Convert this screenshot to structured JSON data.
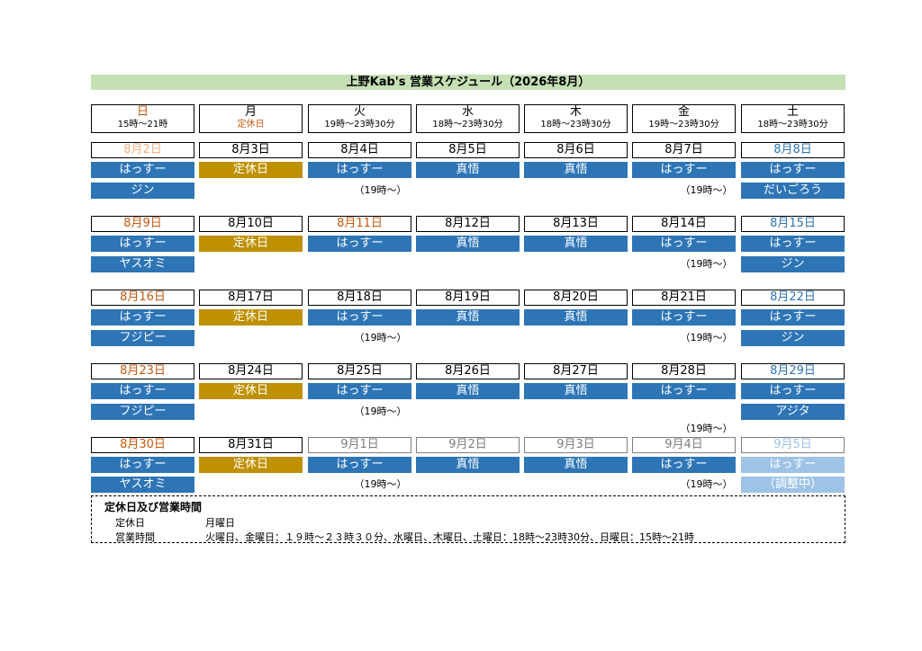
{
  "title": "上野Kab's 営業スケジュール（2026年8月）",
  "headers": [
    {
      "day": "日",
      "hours": "15時〜21時"
    },
    {
      "day": "月",
      "hours": "定休日"
    },
    {
      "day": "火",
      "hours": "19時〜23時30分"
    },
    {
      "day": "水",
      "hours": "18時〜23時30分"
    },
    {
      "day": "木",
      "hours": "18時〜23時30分"
    },
    {
      "day": "金",
      "hours": "19時〜23時30分"
    },
    {
      "day": "土",
      "hours": "18時〜23時30分"
    }
  ],
  "weeks": [
    {
      "dates": [
        "8月2日",
        "8月3日",
        "8月4日",
        "8月5日",
        "8月6日",
        "8月7日",
        "8月8日"
      ],
      "staff": [
        "はっすー",
        "定休日",
        "はっすー",
        "真悟",
        "真悟",
        "はっすー",
        "はっすー"
      ],
      "sub": [
        "ジン",
        "",
        "",
        "",
        "",
        "",
        "だいごろう"
      ],
      "notes": [
        "",
        "",
        "（19時〜）",
        "",
        "",
        "（19時〜）",
        ""
      ]
    },
    {
      "dates": [
        "8月9日",
        "8月10日",
        "8月11日",
        "8月12日",
        "8月13日",
        "8月14日",
        "8月15日"
      ],
      "staff": [
        "はっすー",
        "定休日",
        "はっすー",
        "真悟",
        "真悟",
        "はっすー",
        "はっすー"
      ],
      "sub": [
        "ヤスオミ",
        "",
        "",
        "",
        "",
        "",
        "ジン"
      ],
      "notes": [
        "",
        "",
        "",
        "",
        "",
        "（19時〜）",
        ""
      ]
    },
    {
      "dates": [
        "8月16日",
        "8月17日",
        "8月18日",
        "8月19日",
        "8月20日",
        "8月21日",
        "8月22日"
      ],
      "staff": [
        "はっすー",
        "定休日",
        "はっすー",
        "真悟",
        "真悟",
        "はっすー",
        "はっすー"
      ],
      "sub": [
        "フジピー",
        "",
        "",
        "",
        "",
        "",
        "ジン"
      ],
      "notes": [
        "",
        "",
        "（19時〜）",
        "",
        "",
        "（19時〜）",
        ""
      ]
    },
    {
      "dates": [
        "8月23日",
        "8月24日",
        "8月25日",
        "8月26日",
        "8月27日",
        "8月28日",
        "8月29日"
      ],
      "staff": [
        "はっすー",
        "定休日",
        "はっすー",
        "真悟",
        "真悟",
        "はっすー",
        "はっすー"
      ],
      "sub": [
        "フジピー",
        "",
        "",
        "",
        "",
        "",
        "アジタ"
      ],
      "notes": [
        "",
        "",
        "（19時〜）",
        "",
        "",
        "（19時〜）",
        ""
      ]
    },
    {
      "dates": [
        "8月30日",
        "8月31日",
        "9月1日",
        "9月2日",
        "9月3日",
        "9月4日",
        "9月5日"
      ],
      "staff": [
        "はっすー",
        "定休日",
        "はっすー",
        "真悟",
        "真悟",
        "はっすー",
        "はっすー"
      ],
      "sub": [
        "ヤスオミ",
        "",
        "",
        "",
        "",
        "",
        "（調整中）"
      ],
      "notes": [
        "",
        "",
        "（19時〜）",
        "",
        "",
        "（19時〜）",
        ""
      ]
    }
  ],
  "info": {
    "title": "定休日及び営業時間",
    "closed_label": "定休日",
    "closed_value": "月曜日",
    "hours_label": "営業時間",
    "hours_value": "火曜日、金曜日：１９時〜２３時３０分、水曜日、木曜日、土曜日：18時〜23時30分、日曜日：15時〜21時"
  },
  "colors": {
    "title_bg": "#c5e0b4",
    "staff_bg": "#2e75b6",
    "closed_bg": "#bf9000",
    "pending_bg": "#9dc3e6",
    "holiday_text": "#c55a11",
    "saturday_text": "#2e75b6"
  }
}
